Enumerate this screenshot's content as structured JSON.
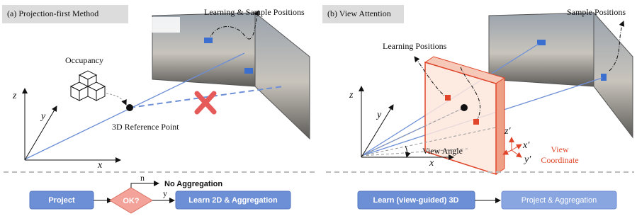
{
  "panel_a": {
    "title": "(a) Projection-first Method",
    "sample_label": "Learning & Sample Positions",
    "occupancy_label": "Occupancy",
    "reference_label": "3D Reference Point",
    "axes": [
      "z",
      "y",
      "x"
    ],
    "flow": {
      "project": "Project",
      "decision": "OK?",
      "no_branch": "n",
      "no_result": "No Aggregation",
      "yes_branch": "y",
      "yes_result": "Learn 2D & Aggregation"
    }
  },
  "panel_b": {
    "title": "(b) View Attention",
    "sample_label": "Sample Positions",
    "learning_label": "Learning Positions",
    "axes": [
      "z",
      "y",
      "x"
    ],
    "view_angle": "View Angle",
    "view_axes": [
      "z′",
      "x′",
      "y′"
    ],
    "view_coordinate": [
      "View",
      "Coordinate"
    ],
    "flow": {
      "learn": "Learn (view-guided) 3D",
      "project": "Project & Aggregation"
    }
  }
}
